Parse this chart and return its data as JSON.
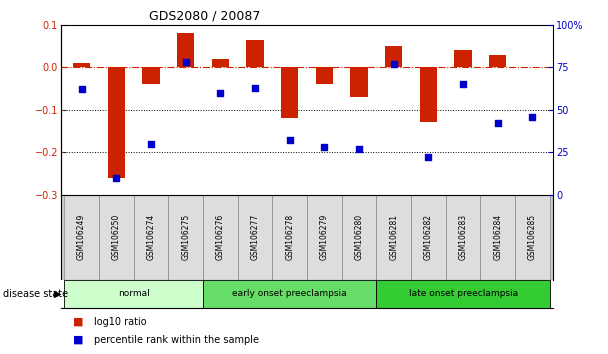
{
  "title": "GDS2080 / 20087",
  "samples": [
    "GSM106249",
    "GSM106250",
    "GSM106274",
    "GSM106275",
    "GSM106276",
    "GSM106277",
    "GSM106278",
    "GSM106279",
    "GSM106280",
    "GSM106281",
    "GSM106282",
    "GSM106283",
    "GSM106284",
    "GSM106285"
  ],
  "log10_ratio": [
    0.01,
    -0.26,
    -0.04,
    0.08,
    0.02,
    0.065,
    -0.12,
    -0.04,
    -0.07,
    0.05,
    -0.13,
    0.04,
    0.03,
    0.0
  ],
  "percentile_rank": [
    62,
    10,
    30,
    78,
    60,
    63,
    32,
    28,
    27,
    77,
    22,
    65,
    42,
    46
  ],
  "disease_state_groups": [
    {
      "label": "normal",
      "start": 0,
      "end": 3,
      "color": "#ccffcc"
    },
    {
      "label": "early onset preeclampsia",
      "start": 4,
      "end": 8,
      "color": "#66dd66"
    },
    {
      "label": "late onset preeclampsia",
      "start": 9,
      "end": 13,
      "color": "#33cc33"
    }
  ],
  "bar_color": "#cc2200",
  "point_color": "#0000cc",
  "left_ylim": [
    -0.3,
    0.1
  ],
  "right_ylim": [
    0,
    100
  ],
  "left_yticks": [
    -0.3,
    -0.2,
    -0.1,
    0.0,
    0.1
  ],
  "right_yticks": [
    0,
    25,
    50,
    75,
    100
  ],
  "right_yticklabels": [
    "0",
    "25",
    "50",
    "75",
    "100%"
  ],
  "dotted_lines": [
    -0.1,
    -0.2
  ],
  "background_color": "#ffffff",
  "legend_items": [
    "log10 ratio",
    "percentile rank within the sample"
  ],
  "disease_label": "disease state"
}
